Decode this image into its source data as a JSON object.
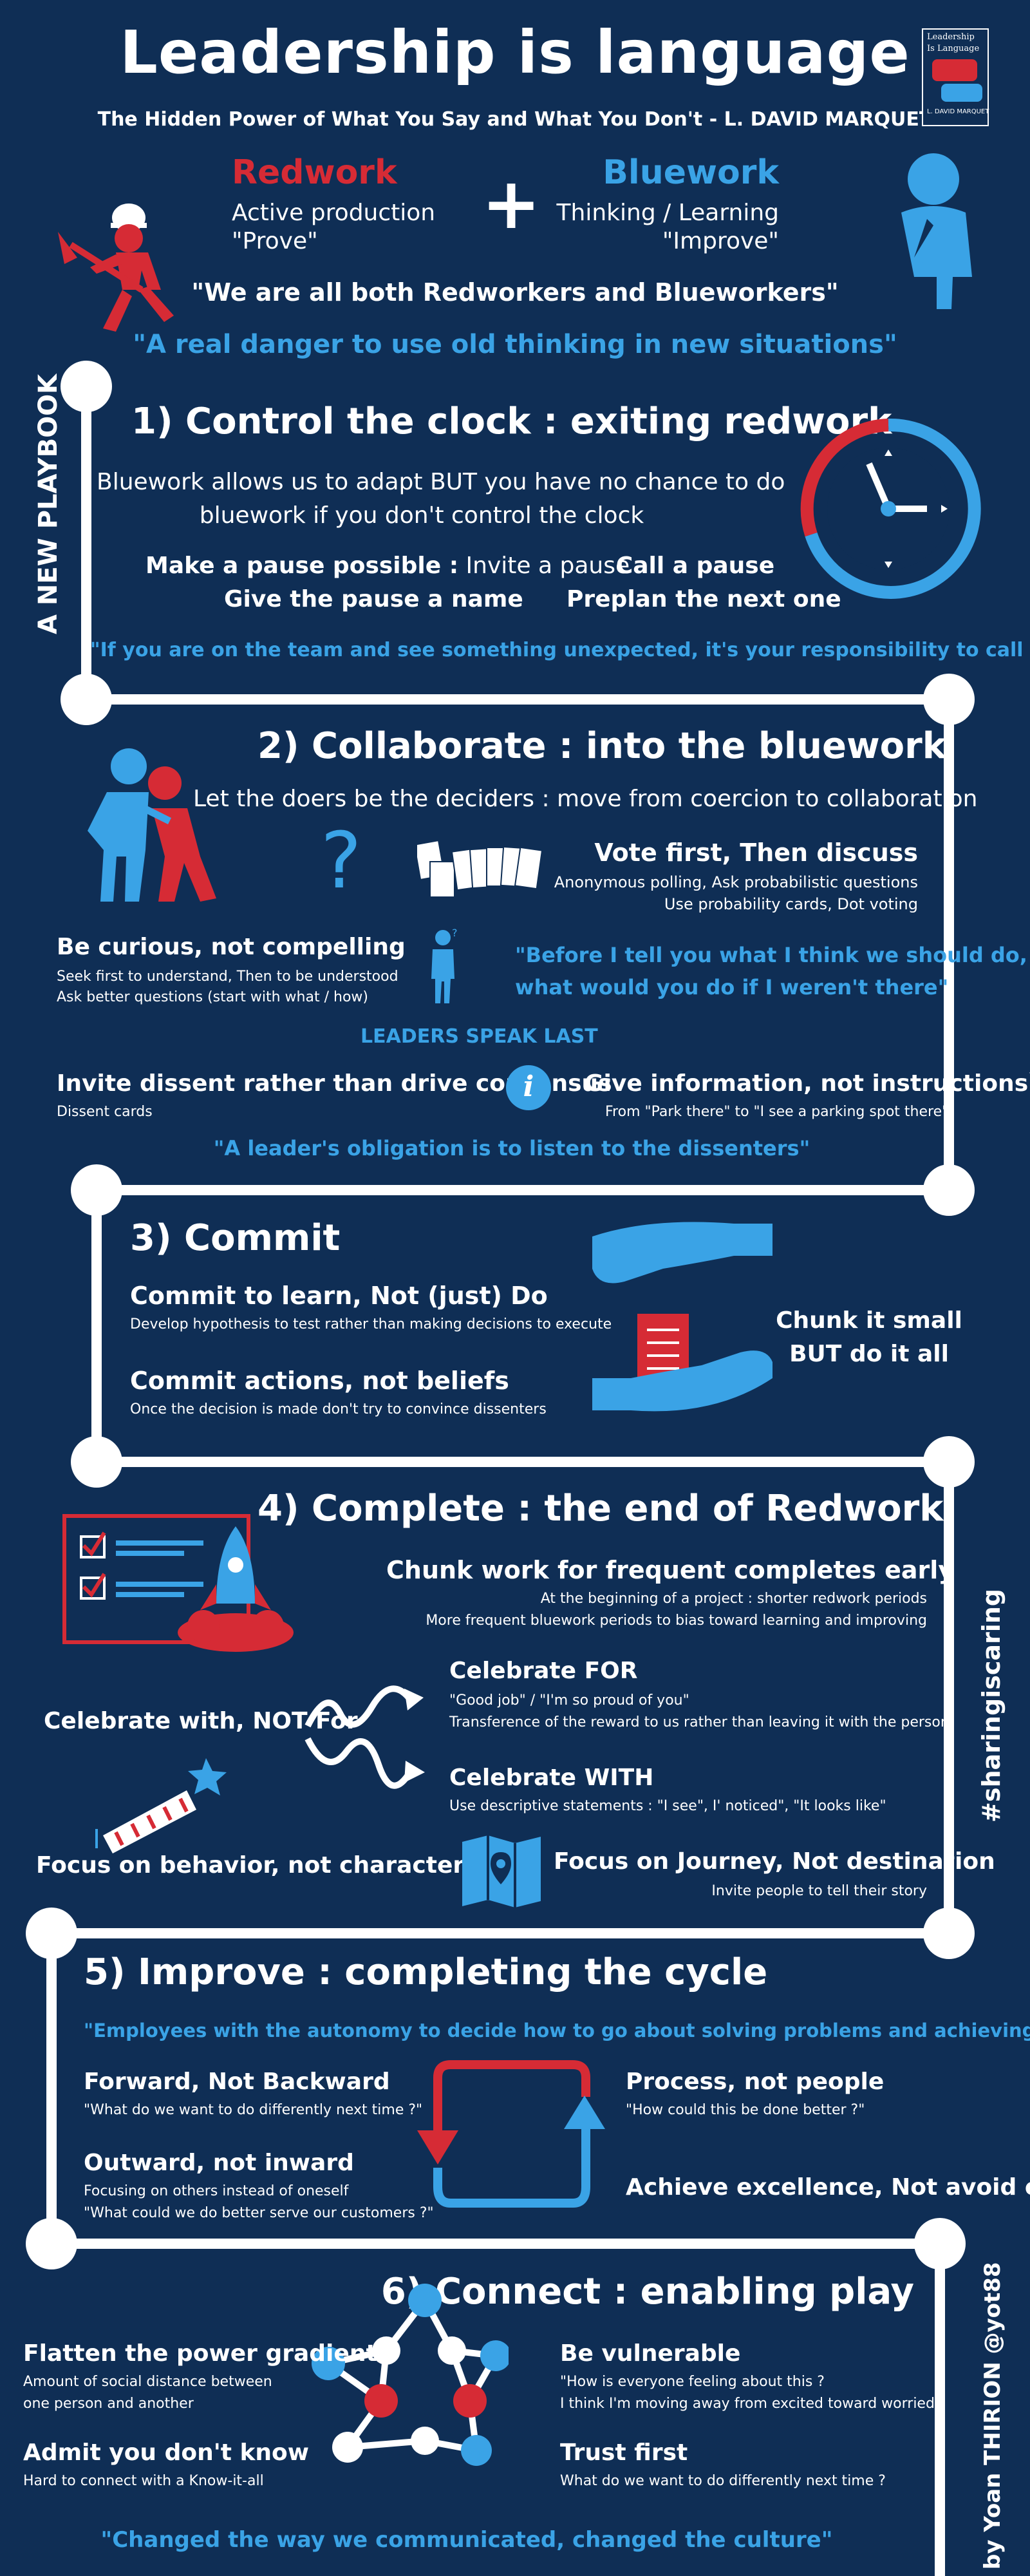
{
  "header": {
    "title": "Leadership is language",
    "subtitle": "The Hidden Power of What You Say and What You Don't - L. DAVID MARQUET",
    "book": {
      "title_line1": "Leadership",
      "title_line2": "Is Language",
      "author": "L. DAVID MARQUET"
    }
  },
  "intro": {
    "redwork_title": "Redwork",
    "redwork_line1": "Active production",
    "redwork_line2": "\"Prove\"",
    "plus": "+",
    "bluework_title": "Bluework",
    "bluework_line1": "Thinking / Learning",
    "bluework_line2": "\"Improve\"",
    "quote1": "\"We are all both Redworkers and Blueworkers\"",
    "quote2": "\"A real danger to use old thinking in new situations\""
  },
  "side": {
    "playbook": "A NEW PLAYBOOK",
    "hashtag": "#sharingiscaring",
    "byline": "by Yoan THIRION  @yot88"
  },
  "s1": {
    "title": "1) Control the clock : exiting redwork",
    "line1": "Bluework allows us to adapt BUT you have no chance to do",
    "line2": "bluework if you don't control the clock",
    "make_pause_bold": "Make a pause possible :",
    "make_pause_rest": " Invite a pause",
    "give_pause": "Give the pause a name",
    "call_pause": "Call a pause",
    "preplan": "Preplan the next one",
    "quote": "\"If you are on the team and see something unexpected, it's your responsibility to call a pause\""
  },
  "s2": {
    "title": "2) Collaborate : into the bluework",
    "subtitle": "Let the doers be the deciders : move from coercion to collaboration",
    "vote_title": "Vote first, Then discuss",
    "vote_l1": "Anonymous polling, Ask probabilistic questions",
    "vote_l2": "Use probability cards, Dot voting",
    "curious_title": "Be curious, not compelling",
    "curious_l1": "Seek first to understand, Then to be understood",
    "curious_l2": "Ask better questions (start with what / how)",
    "quote_l1": "\"Before I tell you what I think we should do,",
    "quote_l2": "what would you do if I weren't there\"",
    "leaders": "LEADERS SPEAK LAST",
    "dissent_title": "Invite dissent rather than drive consensus",
    "dissent_l1": "Dissent cards",
    "info_title": "Give information, not instructions`",
    "info_l1": "From \"Park there\" to \"I see a parking spot there\"",
    "info_icon": "i",
    "quote2": "\"A leader's obligation is to listen to the dissenters\""
  },
  "s3": {
    "title": "3) Commit",
    "learn_title": "Commit to learn, Not (just) Do",
    "learn_l1": "Develop hypothesis to test rather than making decisions to execute",
    "actions_title": "Commit actions, not beliefs",
    "actions_l1": "Once the decision is made don't try to convince dissenters",
    "chunk_l1": "Chunk it small",
    "chunk_l2": "BUT do it all"
  },
  "s4": {
    "title": "4) Complete : the end of Redwork",
    "chunk_title": "Chunk work for frequent completes early",
    "chunk_l1": "At the beginning of a project : shorter redwork periods",
    "chunk_l2": "More frequent bluework periods to bias toward learning and improving",
    "celebrate_with_not": "Celebrate with, NOT For",
    "for_title": "Celebrate FOR",
    "for_l1": "\"Good job\" / \"I'm so proud of you\"",
    "for_l2": "Transference of the reward to us rather than leaving it with the person",
    "with_title": "Celebrate WITH",
    "with_l1": "Use descriptive statements : \"I see\", I' noticed\", \"It looks like\"",
    "behavior": "Focus on behavior, not characteristics",
    "journey_title": "Focus on Journey, Not destination",
    "journey_l1": "Invite people to tell their story"
  },
  "s5": {
    "title": "5) Improve : completing the cycle",
    "quote": "\"Employees with the autonomy to decide how to go about solving problems and achieving goals innovate\"",
    "forward_title": "Forward, Not Backward",
    "forward_l1": "\"What do we want to do differently next time ?\"",
    "process_title": "Process, not people",
    "process_l1": "\"How could this be done better ?\"",
    "outward_title": "Outward, not inward",
    "outward_l1": "Focusing on others instead of oneself",
    "outward_l2": "\"What could we do better serve our customers ?\"",
    "excellence": "Achieve excellence, Not avoid errors"
  },
  "s6": {
    "title": "6) Connect : enabling play",
    "power_title": "Flatten the power gradient",
    "power_l1": "Amount of social distance between",
    "power_l2": "one person and another",
    "vuln_title": "Be vulnerable",
    "vuln_l1": "\"How is everyone feeling about this ?",
    "vuln_l2": "I think I'm moving away from excited toward worried\"",
    "admit_title": "Admit you don't know",
    "admit_l1": "Hard to connect with a Know-it-all",
    "trust_title": "Trust first",
    "trust_l1": "What do we want to do differently next time ?",
    "quote": "\"Changed the way we communicated, changed the culture\""
  },
  "colors": {
    "bg": "#0f2e55",
    "red": "#d62b35",
    "blue": "#3aa3e6",
    "white": "#ffffff"
  },
  "icons": [
    "worker-shovel-icon",
    "thinker-icon",
    "clock-icon",
    "people-helping-icon",
    "question-icon",
    "cards-icon",
    "person-icon",
    "info-icon",
    "hands-icon",
    "checklist-rocket-icon",
    "arrows-icon",
    "firework-icon",
    "map-icon",
    "cycle-icon",
    "network-icon"
  ]
}
